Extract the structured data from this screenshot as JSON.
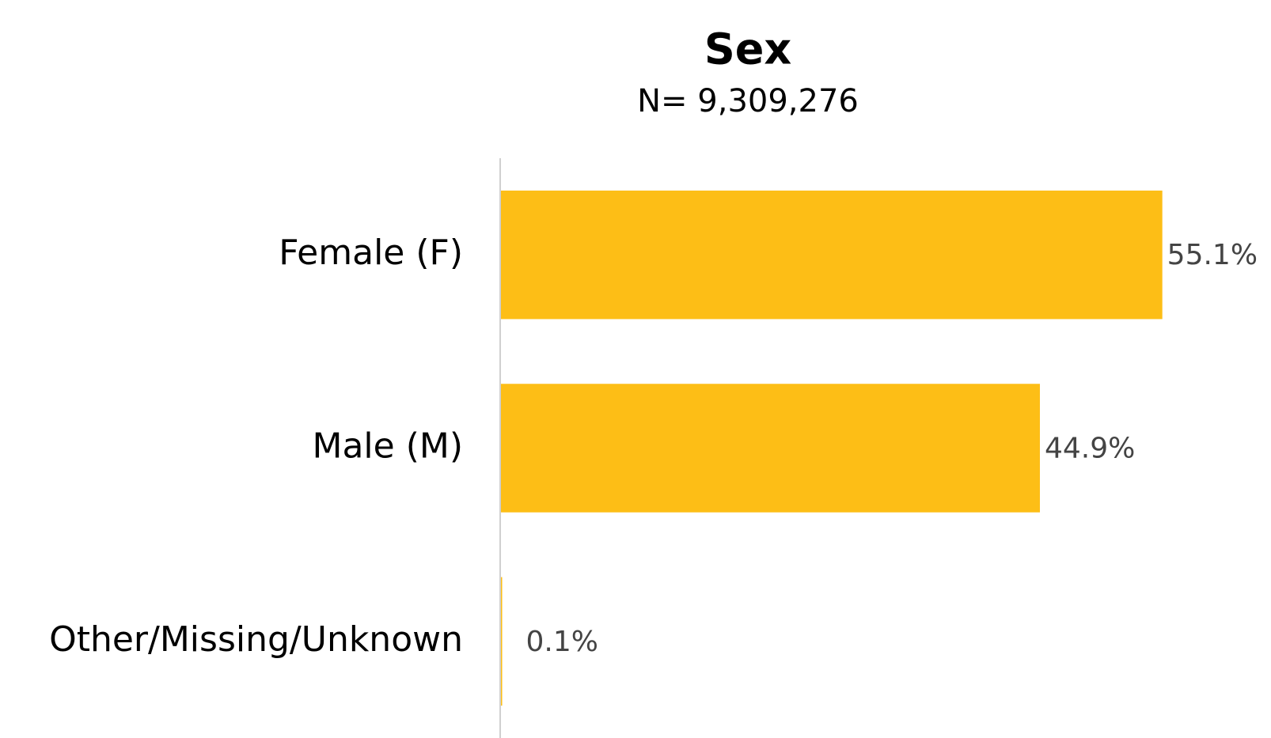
{
  "chart_data": {
    "type": "bar",
    "orientation": "horizontal",
    "title": "Sex",
    "subtitle": "N= 9,309,276",
    "categories": [
      "Female (F)",
      "Male (M)",
      "Other/Missing/Unknown"
    ],
    "values": [
      55.1,
      44.9,
      0.1
    ],
    "value_labels": [
      "55.1%",
      "44.9%",
      "0.1%"
    ],
    "color": "#fdbe16",
    "xlim": [
      0,
      60
    ]
  }
}
